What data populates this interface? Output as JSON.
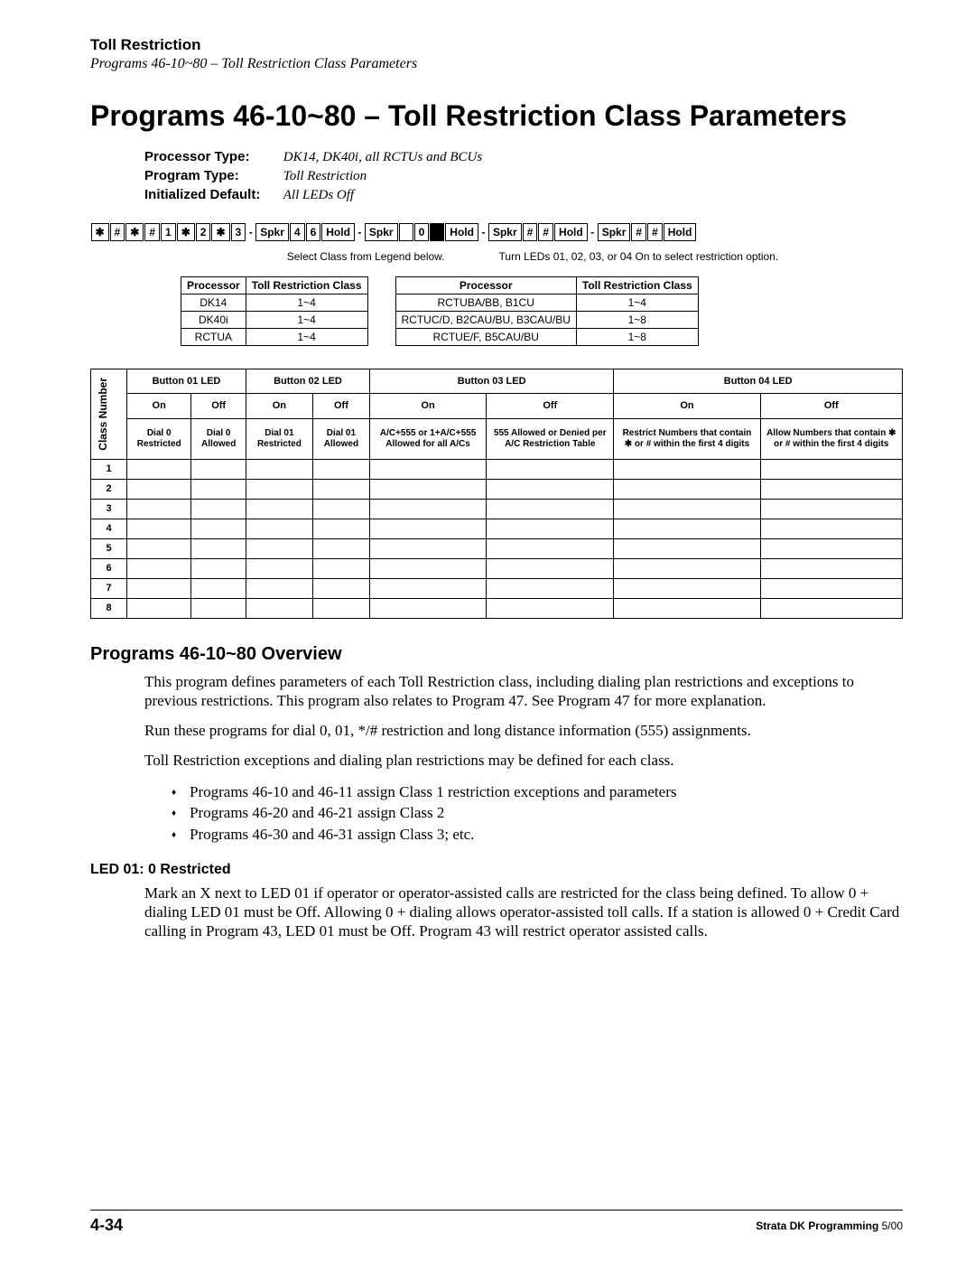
{
  "header": {
    "title": "Toll Restriction",
    "subtitle": "Programs 46-10~80 – Toll Restriction Class Parameters"
  },
  "main_title": "Programs 46-10~80 – Toll Restriction Class Parameters",
  "meta": {
    "processor_type_label": "Processor Type:",
    "processor_type_value": "DK14, DK40i, all RCTUs and BCUs",
    "program_type_label": "Program Type:",
    "program_type_value": "Toll Restriction",
    "init_default_label": "Initialized Default:",
    "init_default_value": "All LEDs Off"
  },
  "key_seq": {
    "keys1": [
      "✱",
      "#",
      "✱",
      "#",
      "1",
      "✱",
      "2",
      "✱",
      "3"
    ],
    "spkr": "Spkr",
    "keys2": [
      "4",
      "6"
    ],
    "hold": "Hold",
    "zero": "0",
    "hash": "#",
    "sep": "-"
  },
  "annotations": {
    "left": "Select Class from Legend below.",
    "right": "Turn LEDs 01, 02, 03, or 04 On to select restriction option."
  },
  "ptable1": {
    "col1": "Processor",
    "col2": "Toll Restriction Class",
    "rows": [
      [
        "DK14",
        "1~4"
      ],
      [
        "DK40i",
        "1~4"
      ],
      [
        "RCTUA",
        "1~4"
      ]
    ]
  },
  "ptable2": {
    "col1": "Processor",
    "col2": "Toll Restriction Class",
    "rows": [
      [
        "RCTUBA/BB, B1CU",
        "1~4"
      ],
      [
        "RCTUC/D, B2CAU/BU, B3CAU/BU",
        "1~8"
      ],
      [
        "RCTUE/F, B5CAU/BU",
        "1~8"
      ]
    ]
  },
  "main_table": {
    "class_label": "Class Number",
    "button_headers": [
      "Button 01 LED",
      "Button 02 LED",
      "Button 03 LED",
      "Button 04 LED"
    ],
    "on": "On",
    "off": "Off",
    "descs": [
      "Dial 0 Restricted",
      "Dial 0 Allowed",
      "Dial 01 Restricted",
      "Dial 01 Allowed",
      "A/C+555 or 1+A/C+555 Allowed for all A/Cs",
      "555 Allowed or Denied per A/C Restriction Table",
      "Restrict Numbers that contain ✱ or # within the first 4 digits",
      "Allow Numbers that contain ✱ or # within the first 4 digits"
    ],
    "class_numbers": [
      "1",
      "2",
      "3",
      "4",
      "5",
      "6",
      "7",
      "8"
    ]
  },
  "overview": {
    "title": "Programs 46-10~80 Overview",
    "p1": "This program defines parameters of each Toll Restriction class, including dialing plan restrictions and exceptions to previous restrictions. This program also relates to Program 47. See Program 47 for more explanation.",
    "p2": "Run these programs for dial 0, 01, */# restriction and long distance information (555) assignments.",
    "p3": "Toll Restriction exceptions and dialing plan restrictions may be defined for each class.",
    "bullets": [
      "Programs 46-10 and 46-11 assign Class 1 restriction exceptions and parameters",
      "Programs 46-20 and 46-21 assign Class 2",
      "Programs 46-30 and 46-31 assign Class 3; etc."
    ],
    "sub_heading": "LED 01: 0 Restricted",
    "p4": "Mark an X next to LED 01 if operator or operator-assisted calls are restricted for the class being defined. To allow 0 + dialing LED 01 must be Off. Allowing 0 + dialing allows operator-assisted toll calls. If a station is allowed 0 + Credit Card calling in Program 43, LED 01 must be Off. Program 43 will restrict operator assisted calls."
  },
  "footer": {
    "page": "4-34",
    "right_bold": "Strata DK Programming",
    "right_light": "   5/00"
  }
}
